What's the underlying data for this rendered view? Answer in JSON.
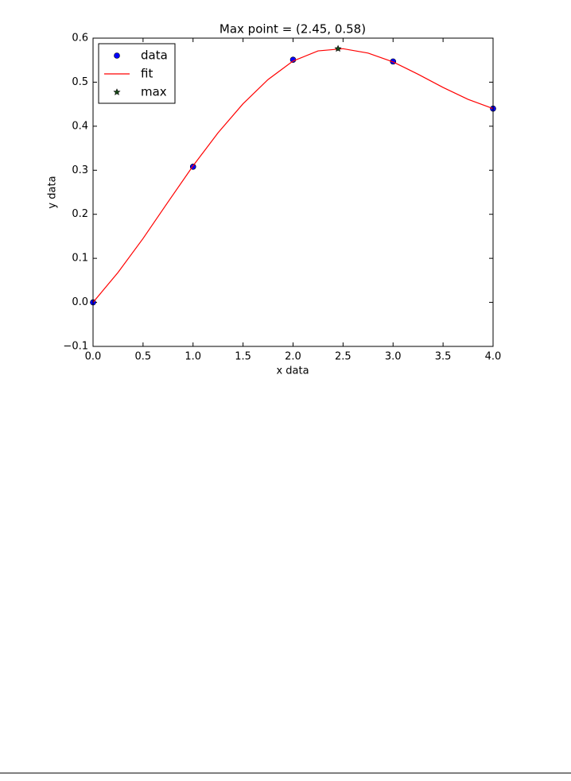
{
  "chart_data": {
    "type": "line",
    "title": "Max point = (2.45, 0.58)",
    "xlabel": "x data",
    "ylabel": "y data",
    "xlim": [
      0,
      4
    ],
    "ylim": [
      -0.1,
      0.6
    ],
    "xticks": [
      {
        "value": 0,
        "label": "0.0"
      },
      {
        "value": 0.5,
        "label": "0.5"
      },
      {
        "value": 1,
        "label": "1.0"
      },
      {
        "value": 1.5,
        "label": "1.5"
      },
      {
        "value": 2,
        "label": "2.0"
      },
      {
        "value": 2.5,
        "label": "2.5"
      },
      {
        "value": 3,
        "label": "3.0"
      },
      {
        "value": 3.5,
        "label": "3.5"
      },
      {
        "value": 4,
        "label": "4.0"
      }
    ],
    "yticks": [
      {
        "value": -0.1,
        "label": "−0.1"
      },
      {
        "value": 0,
        "label": "0.0"
      },
      {
        "value": 0.1,
        "label": "0.1"
      },
      {
        "value": 0.2,
        "label": "0.2"
      },
      {
        "value": 0.3,
        "label": "0.3"
      },
      {
        "value": 0.4,
        "label": "0.4"
      },
      {
        "value": 0.5,
        "label": "0.5"
      },
      {
        "value": 0.6,
        "label": "0.6"
      }
    ],
    "legend": "upper left",
    "series": [
      {
        "name": "data",
        "style": "circle",
        "color": "#0000ff",
        "x": [
          0,
          1,
          2,
          3,
          4
        ],
        "values": [
          0,
          0.308,
          0.551,
          0.547,
          0.44
        ]
      },
      {
        "name": "fit",
        "style": "line",
        "color": "#ff0000",
        "x": [
          0,
          0.25,
          0.5,
          0.75,
          1,
          1.25,
          1.5,
          1.75,
          2,
          2.25,
          2.5,
          2.75,
          3,
          3.25,
          3.5,
          3.75,
          4
        ],
        "values": [
          0,
          0.068,
          0.145,
          0.228,
          0.31,
          0.385,
          0.451,
          0.506,
          0.548,
          0.571,
          0.576,
          0.566,
          0.546,
          0.518,
          0.488,
          0.461,
          0.44
        ]
      },
      {
        "name": "max",
        "style": "star",
        "color": "#1a4d1a",
        "x": [
          2.45
        ],
        "values": [
          0.576
        ]
      }
    ]
  }
}
